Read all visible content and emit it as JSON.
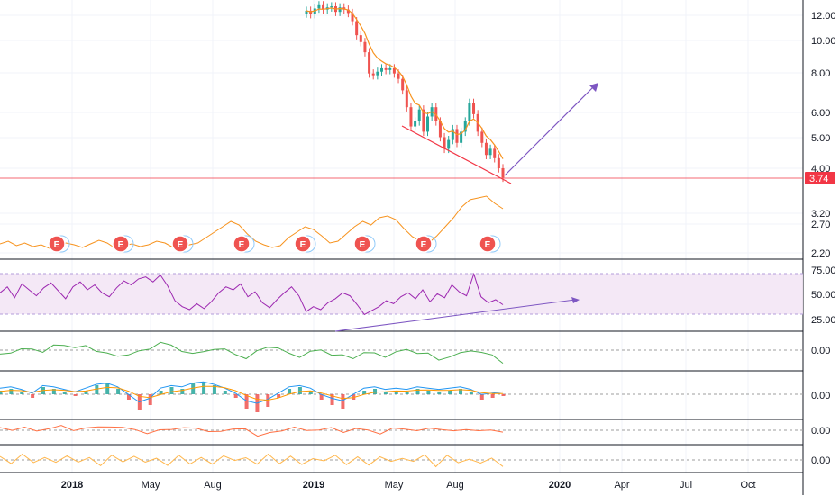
{
  "chart_data": {
    "type": "line",
    "x_axis": {
      "ticks": [
        "2018",
        "May",
        "Aug",
        "2019",
        "May",
        "Aug",
        "2020",
        "Apr",
        "Jul",
        "Oct"
      ],
      "bold": [
        "2018",
        "2019",
        "2020"
      ]
    },
    "price_pane": {
      "scale": "log",
      "ticks": [
        "12.00",
        "10.00",
        "8.00",
        "6.00",
        "5.00",
        "4.00",
        "3.20",
        "2.70",
        "2.20"
      ],
      "last_price": "3.74",
      "candles_close": [
        12.4,
        12.1,
        12.6,
        12.9,
        12.5,
        12.7,
        12.8,
        12.3,
        12.7,
        12.5,
        12.2,
        11.5,
        10.4,
        9.9,
        9.2,
        7.9,
        7.8,
        8.0,
        8.2,
        8.1,
        8.2,
        7.9,
        7.6,
        7.0,
        6.2,
        5.4,
        5.6,
        6.1,
        5.2,
        5.8,
        6.2,
        5.6,
        5.0,
        4.6,
        4.9,
        5.3,
        4.8,
        5.2,
        5.6,
        6.4,
        5.9,
        5.2,
        4.8,
        4.4,
        4.6,
        4.3,
        4.0,
        3.74
      ],
      "earnings_markers": [
        "E",
        "E",
        "E",
        "E",
        "E",
        "E",
        "E",
        "E"
      ],
      "indicator_line_color": "#f7931e",
      "support_line_color": "#f23645",
      "projection_arrow_color": "#7e57c2"
    },
    "rsi_pane": {
      "ticks": [
        "75.00",
        "50.00",
        "25.00"
      ],
      "band": [
        30,
        70
      ],
      "color": "#9c27b0",
      "values": [
        52,
        58,
        47,
        61,
        55,
        49,
        57,
        62,
        54,
        46,
        58,
        63,
        55,
        60,
        52,
        48,
        57,
        64,
        60,
        66,
        68,
        63,
        70,
        59,
        44,
        38,
        35,
        41,
        36,
        43,
        52,
        58,
        55,
        61,
        48,
        53,
        42,
        37,
        45,
        52,
        58,
        49,
        33,
        38,
        35,
        42,
        46,
        52,
        49,
        40,
        30,
        34,
        38,
        44,
        41,
        48,
        52,
        46,
        55,
        43,
        51,
        47,
        60,
        53,
        49,
        71,
        48,
        42,
        45,
        40
      ]
    },
    "osc1_pane": {
      "ticks": [
        "0.00"
      ],
      "color": "#4caf50",
      "values": [
        -0.2,
        -0.1,
        0.0,
        0.1,
        -0.1,
        0.2,
        0.3,
        0.1,
        0.2,
        0.0,
        -0.2,
        -0.3,
        -0.2,
        -0.1,
        0.1,
        0.4,
        0.2,
        0.0,
        -0.2,
        -0.1,
        0.1,
        0.0,
        -0.2,
        -0.4,
        -0.1,
        0.2,
        0.1,
        -0.2,
        -0.3,
        -0.1,
        0.0,
        -0.2,
        -0.3,
        -0.4,
        -0.1,
        -0.2,
        -0.3,
        -0.1,
        0.0,
        -0.1,
        -0.2,
        -0.5,
        -0.3,
        -0.2,
        0.0,
        -0.1,
        -0.3,
        -0.6
      ]
    },
    "macd_pane": {
      "ticks": [
        "0.00"
      ],
      "macd_color": "#2196f3",
      "signal_color": "#ff9800",
      "hist_pos_color": "#26a69a",
      "hist_neg_color": "#ef5350",
      "hist": [
        0.2,
        0.3,
        0.1,
        -0.2,
        0.4,
        0.3,
        0.1,
        -0.1,
        0.2,
        0.5,
        0.6,
        0.3,
        -0.3,
        -0.9,
        -0.6,
        0.2,
        0.4,
        0.3,
        0.6,
        0.7,
        0.5,
        0.2,
        -0.2,
        -0.8,
        -1.0,
        -0.7,
        -0.2,
        0.3,
        0.4,
        0.2,
        -0.3,
        -0.6,
        -0.8,
        -0.3,
        0.2,
        0.3,
        0.1,
        0.2,
        0.1,
        0.3,
        0.2,
        0.1,
        0.2,
        0.3,
        0.1,
        -0.3,
        -0.2,
        -0.1
      ]
    },
    "osc3_pane": {
      "ticks": [
        "0.00"
      ],
      "color": "#ff7043",
      "values": [
        0.3,
        0.1,
        0.2,
        0.0,
        0.2,
        0.4,
        0.1,
        0.2,
        0.3,
        0.5,
        0.2,
        0.1,
        -0.3,
        -0.1,
        0.2,
        0.3,
        0.1,
        0.0,
        -0.2,
        0.1,
        0.3,
        -0.8,
        -0.2,
        0.0,
        0.2,
        0.1,
        0.0,
        0.2,
        -0.1,
        0.1,
        0.0,
        -0.3,
        0.1,
        0.2,
        0.0,
        0.1,
        0.2,
        -0.1,
        0.0,
        0.1,
        -0.1,
        -0.2
      ]
    },
    "osc4_pane": {
      "ticks": [
        "0.00"
      ],
      "color": "#ffb74d",
      "values": [
        0.4,
        -0.3,
        0.5,
        -0.2,
        0.3,
        -0.4,
        0.6,
        -0.3,
        0.2,
        -0.5,
        0.4,
        -0.2,
        0.5,
        -0.4,
        0.3,
        -0.6,
        0.4,
        -0.3,
        0.2,
        -0.5,
        0.6,
        -0.2,
        0.3,
        -0.4,
        0.5,
        -0.3,
        0.4,
        -0.6,
        0.3,
        -0.2,
        0.5,
        -0.4,
        0.2,
        -0.5,
        0.4,
        -0.3,
        0.3,
        -0.2,
        0.5,
        -0.6,
        0.4,
        -0.3,
        0.2,
        -0.5,
        0.3,
        -0.7
      ]
    }
  }
}
